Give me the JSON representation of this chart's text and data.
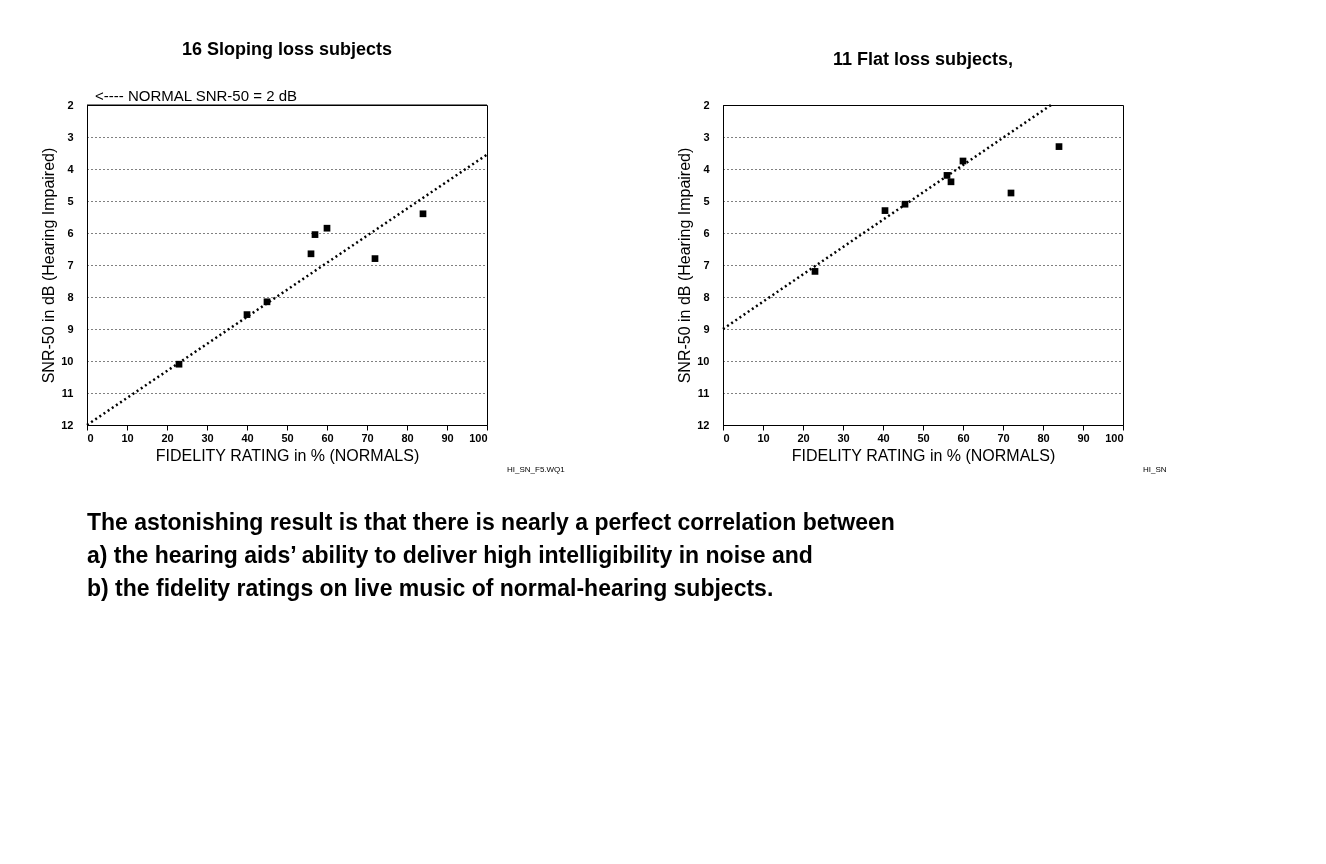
{
  "chart_data": [
    {
      "type": "scatter",
      "title": "16 Sloping loss subjects",
      "xlabel": "FIDELITY RATING in % (NORMALS)",
      "ylabel": "SNR-50 in dB  (Hearing Impaired)",
      "xlim": [
        0,
        100
      ],
      "xticks": [
        0,
        10,
        20,
        30,
        40,
        50,
        60,
        70,
        80,
        90,
        100
      ],
      "ylim": [
        12,
        2
      ],
      "yticks": [
        2,
        3,
        4,
        5,
        6,
        7,
        8,
        9,
        10,
        11,
        12
      ],
      "grid": "y",
      "series": [
        {
          "marker": "square",
          "color": "#000000",
          "x": [
            23,
            40,
            45,
            56,
            57,
            60,
            72,
            84
          ],
          "values": [
            10.1,
            8.55,
            8.15,
            6.65,
            6.05,
            5.85,
            6.8,
            5.4
          ]
        },
        {
          "type": "line",
          "marker": "none",
          "line_style": "dotted",
          "color": "#000000",
          "x": [
            0,
            100
          ],
          "values": [
            12,
            3.55
          ]
        }
      ],
      "ref_lines": [
        {
          "axis": "y",
          "value": 2,
          "label": "<---- NORMAL SNR-50 = 2 dB"
        }
      ],
      "annotations": [
        "HI_SN_F5.WQ1"
      ]
    },
    {
      "type": "scatter",
      "title": "11 Flat loss subjects,",
      "xlabel": "FIDELITY RATING in % (NORMALS)",
      "ylabel": "SNR-50 in dB  (Hearing Impaired)",
      "xlim": [
        0,
        100
      ],
      "xticks": [
        0,
        10,
        20,
        30,
        40,
        50,
        60,
        70,
        80,
        90,
        100
      ],
      "ylim": [
        12,
        2
      ],
      "yticks": [
        2,
        3,
        4,
        5,
        6,
        7,
        8,
        9,
        10,
        11,
        12
      ],
      "grid": "y",
      "series": [
        {
          "marker": "square",
          "color": "#000000",
          "x": [
            23,
            40.5,
            45.5,
            56,
            57,
            60,
            72,
            84
          ],
          "values": [
            7.2,
            5.3,
            5.1,
            4.2,
            4.4,
            3.75,
            4.75,
            3.3
          ]
        },
        {
          "type": "line",
          "marker": "none",
          "line_style": "dotted",
          "color": "#000000",
          "x": [
            0,
            82
          ],
          "values": [
            9,
            2
          ]
        }
      ],
      "annotations": [
        "HI_SN",
        "The astonishing result is that there is nearly a perfect correlation between",
        "a) the hearing aids’ ability to deliver high intelligibility in noise and",
        "b) the fidelity ratings on live music of normal-hearing subjects."
      ]
    }
  ]
}
